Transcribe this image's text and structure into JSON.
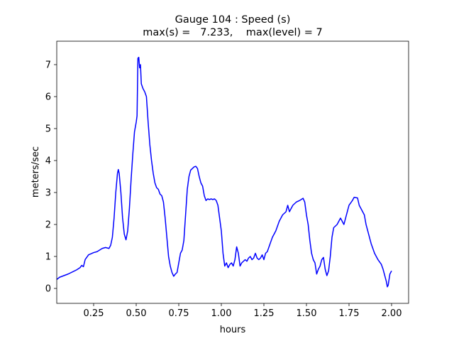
{
  "chart_data": {
    "type": "line",
    "title": "Gauge 104 : Speed (s)",
    "subtitle": "max(s) =   7.233,    max(level) = 7",
    "x_label": "hours",
    "y_label": "meters/sec",
    "xlim": [
      0.0333,
      2.1
    ],
    "ylim": [
      -0.467,
      7.733
    ],
    "xticks": [
      0.25,
      {
        "value": 0.5,
        "label": "0.50"
      },
      0.75,
      {
        "value": 1.0,
        "label": "1.00"
      },
      1.25,
      {
        "value": 1.5,
        "label": "1.50"
      },
      1.75,
      {
        "value": 2.0,
        "label": "2.00"
      }
    ],
    "yticks": [
      0,
      1,
      2,
      3,
      4,
      5,
      6,
      7
    ],
    "grid": false,
    "x": [
      0.0333,
      0.05,
      0.1,
      0.15,
      0.17,
      0.18,
      0.19,
      0.2,
      0.22,
      0.25,
      0.27,
      0.3,
      0.32,
      0.34,
      0.35,
      0.36,
      0.37,
      0.38,
      0.39,
      0.395,
      0.4,
      0.41,
      0.42,
      0.43,
      0.44,
      0.45,
      0.46,
      0.47,
      0.48,
      0.49,
      0.5,
      0.505,
      0.51,
      0.515,
      0.52,
      0.525,
      0.53,
      0.54,
      0.55,
      0.56,
      0.57,
      0.58,
      0.59,
      0.6,
      0.61,
      0.62,
      0.63,
      0.64,
      0.65,
      0.66,
      0.67,
      0.68,
      0.69,
      0.7,
      0.71,
      0.72,
      0.73,
      0.74,
      0.75,
      0.76,
      0.77,
      0.78,
      0.79,
      0.8,
      0.81,
      0.82,
      0.83,
      0.84,
      0.85,
      0.86,
      0.87,
      0.88,
      0.89,
      0.9,
      0.91,
      0.92,
      0.93,
      0.94,
      0.95,
      0.96,
      0.97,
      0.98,
      0.99,
      1.0,
      1.01,
      1.02,
      1.03,
      1.04,
      1.05,
      1.06,
      1.07,
      1.08,
      1.09,
      1.1,
      1.11,
      1.12,
      1.13,
      1.14,
      1.15,
      1.16,
      1.17,
      1.18,
      1.19,
      1.2,
      1.21,
      1.22,
      1.23,
      1.24,
      1.25,
      1.26,
      1.27,
      1.28,
      1.3,
      1.32,
      1.34,
      1.36,
      1.38,
      1.39,
      1.4,
      1.42,
      1.44,
      1.46,
      1.48,
      1.49,
      1.5,
      1.51,
      1.52,
      1.53,
      1.54,
      1.55,
      1.56,
      1.57,
      1.58,
      1.59,
      1.6,
      1.61,
      1.62,
      1.63,
      1.64,
      1.65,
      1.66,
      1.68,
      1.7,
      1.72,
      1.73,
      1.74,
      1.75,
      1.77,
      1.78,
      1.8,
      1.81,
      1.82,
      1.84,
      1.85,
      1.86,
      1.88,
      1.9,
      1.92,
      1.94,
      1.95,
      1.96,
      1.97,
      1.975,
      1.98,
      1.99,
      2.0
    ],
    "series": [
      {
        "color": "#0000ff",
        "values": [
          0.28,
          0.35,
          0.45,
          0.58,
          0.65,
          0.72,
          0.68,
          0.9,
          1.05,
          1.12,
          1.15,
          1.25,
          1.28,
          1.25,
          1.35,
          1.6,
          2.2,
          3.0,
          3.6,
          3.72,
          3.6,
          3.0,
          2.2,
          1.7,
          1.52,
          1.8,
          2.5,
          3.4,
          4.2,
          4.9,
          5.2,
          5.4,
          7.2,
          7.23,
          6.9,
          7.0,
          6.4,
          6.25,
          6.15,
          6.0,
          5.2,
          4.5,
          4.0,
          3.6,
          3.3,
          3.15,
          3.1,
          2.95,
          2.9,
          2.7,
          2.2,
          1.6,
          1.0,
          0.7,
          0.5,
          0.38,
          0.45,
          0.5,
          0.8,
          1.1,
          1.2,
          1.5,
          2.3,
          3.1,
          3.5,
          3.7,
          3.75,
          3.8,
          3.82,
          3.75,
          3.5,
          3.3,
          3.2,
          2.9,
          2.75,
          2.8,
          2.78,
          2.8,
          2.78,
          2.8,
          2.75,
          2.6,
          2.2,
          1.8,
          1.1,
          0.7,
          0.8,
          0.65,
          0.75,
          0.8,
          0.7,
          0.9,
          1.3,
          1.1,
          0.7,
          0.8,
          0.85,
          0.9,
          0.85,
          0.95,
          1.0,
          0.9,
          0.95,
          1.1,
          0.95,
          0.9,
          0.95,
          1.05,
          0.9,
          1.1,
          1.15,
          1.3,
          1.6,
          1.8,
          2.1,
          2.3,
          2.4,
          2.6,
          2.4,
          2.6,
          2.7,
          2.75,
          2.82,
          2.7,
          2.3,
          2.0,
          1.5,
          1.1,
          0.9,
          0.8,
          0.45,
          0.6,
          0.7,
          0.9,
          0.97,
          0.6,
          0.4,
          0.55,
          1.0,
          1.6,
          1.9,
          2.0,
          2.2,
          2.0,
          2.2,
          2.4,
          2.6,
          2.75,
          2.85,
          2.83,
          2.6,
          2.5,
          2.3,
          2.0,
          1.8,
          1.4,
          1.1,
          0.9,
          0.75,
          0.6,
          0.4,
          0.2,
          0.05,
          0.1,
          0.45,
          0.55
        ]
      }
    ]
  }
}
